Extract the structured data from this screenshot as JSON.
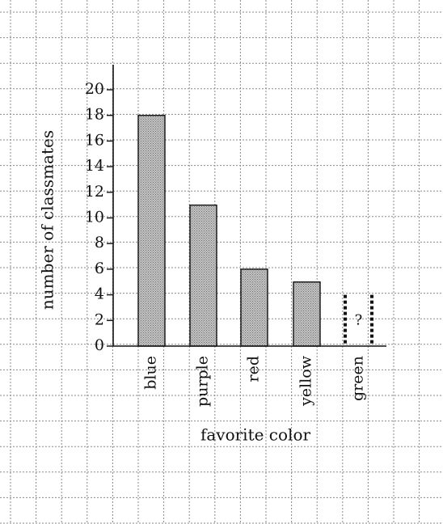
{
  "chart_data": {
    "type": "bar",
    "categories": [
      "blue",
      "purple",
      "red",
      "yellow",
      "green"
    ],
    "values": [
      18,
      11,
      6,
      5,
      4
    ],
    "unknown_category": "green",
    "unknown_label": "?",
    "xlabel": "favorite color",
    "ylabel": "number of classmates",
    "ylim": [
      0,
      20
    ],
    "yticks": [
      "0",
      "2",
      "4",
      "6",
      "8",
      "10",
      "12",
      "14",
      "16",
      "18",
      "20"
    ],
    "grid": true,
    "colors": {
      "bar_fill": "#b8b8b8",
      "bar_stroke": "#111111",
      "grid": "#8a8a8a",
      "axis": "#111111"
    }
  }
}
